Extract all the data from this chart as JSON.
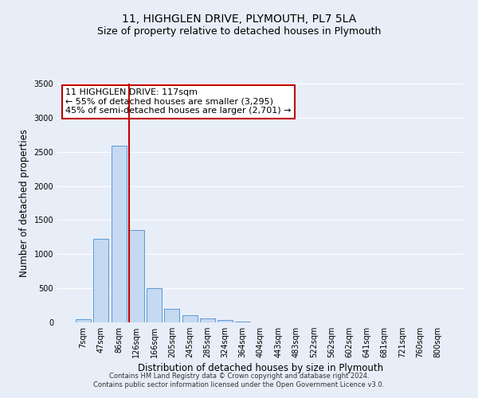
{
  "title": "11, HIGHGLEN DRIVE, PLYMOUTH, PL7 5LA",
  "subtitle": "Size of property relative to detached houses in Plymouth",
  "bar_labels": [
    "7sqm",
    "47sqm",
    "86sqm",
    "126sqm",
    "166sqm",
    "205sqm",
    "245sqm",
    "285sqm",
    "324sqm",
    "364sqm",
    "404sqm",
    "443sqm",
    "483sqm",
    "522sqm",
    "562sqm",
    "602sqm",
    "641sqm",
    "681sqm",
    "721sqm",
    "760sqm",
    "800sqm"
  ],
  "bar_values": [
    50,
    1230,
    2590,
    1350,
    500,
    200,
    110,
    60,
    30,
    10,
    5,
    0,
    5,
    0,
    0,
    0,
    0,
    0,
    0,
    0,
    0
  ],
  "bar_color": "#c5d9f1",
  "bar_edge_color": "#5b9bd5",
  "vline_x_index": 3,
  "vline_color": "#c00000",
  "ylim": [
    0,
    3500
  ],
  "ylabel": "Number of detached properties",
  "xlabel": "Distribution of detached houses by size in Plymouth",
  "annotation_title": "11 HIGHGLEN DRIVE: 117sqm",
  "annotation_line1": "← 55% of detached houses are smaller (3,295)",
  "annotation_line2": "45% of semi-detached houses are larger (2,701) →",
  "annotation_box_facecolor": "#ffffff",
  "annotation_box_edgecolor": "#c00000",
  "footer_line1": "Contains HM Land Registry data © Crown copyright and database right 2024.",
  "footer_line2": "Contains public sector information licensed under the Open Government Licence v3.0.",
  "background_color": "#e8eef8",
  "grid_color": "#ffffff",
  "title_fontsize": 10,
  "subtitle_fontsize": 9,
  "axis_label_fontsize": 8.5,
  "tick_fontsize": 7,
  "annotation_fontsize": 8,
  "footer_fontsize": 6
}
